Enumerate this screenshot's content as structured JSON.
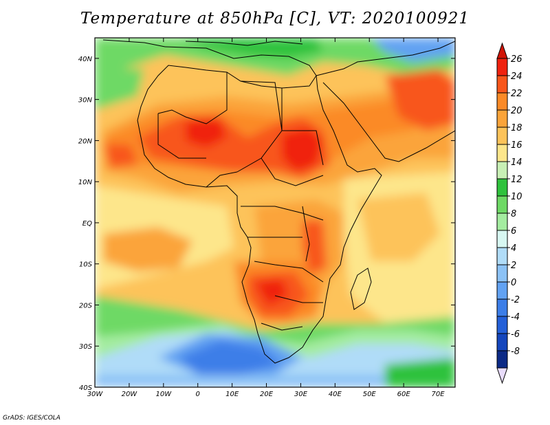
{
  "title": "Temperature at 850hPa [C], VT: 2020100921",
  "credit": "GrADS: IGES/COLA",
  "axes": {
    "lon_labels": [
      "30W",
      "20W",
      "10W",
      "0",
      "10E",
      "20E",
      "30E",
      "40E",
      "50E",
      "60E",
      "70E"
    ],
    "lat_labels": [
      "40N",
      "30N",
      "20N",
      "10N",
      "EQ",
      "10S",
      "20S",
      "30S",
      "40S"
    ]
  },
  "colorbar": {
    "labels": [
      "26",
      "24",
      "22",
      "20",
      "18",
      "16",
      "14",
      "12",
      "10",
      "8",
      "6",
      "4",
      "2",
      "0",
      "-2",
      "-4",
      "-6",
      "-8"
    ],
    "colors": [
      "#f0220f",
      "#f8561b",
      "#fb8a27",
      "#fba43a",
      "#fdc35a",
      "#fde68b",
      "#c8f0b5",
      "#2fc23d",
      "#6ed965",
      "#a4eca0",
      "#d8f8f2",
      "#b0dcf8",
      "#8cc2f6",
      "#62a2f2",
      "#3c7ee8",
      "#2460d8",
      "#1446bc",
      "#0c2a86"
    ],
    "top_color": "#d01406",
    "bottom_color": "#e8dcfb"
  },
  "map": {
    "region": "Africa",
    "lon_range": [
      -30,
      75
    ],
    "lat_range": [
      -40,
      45
    ],
    "variable": "Temperature at 850hPa",
    "units": "C"
  }
}
